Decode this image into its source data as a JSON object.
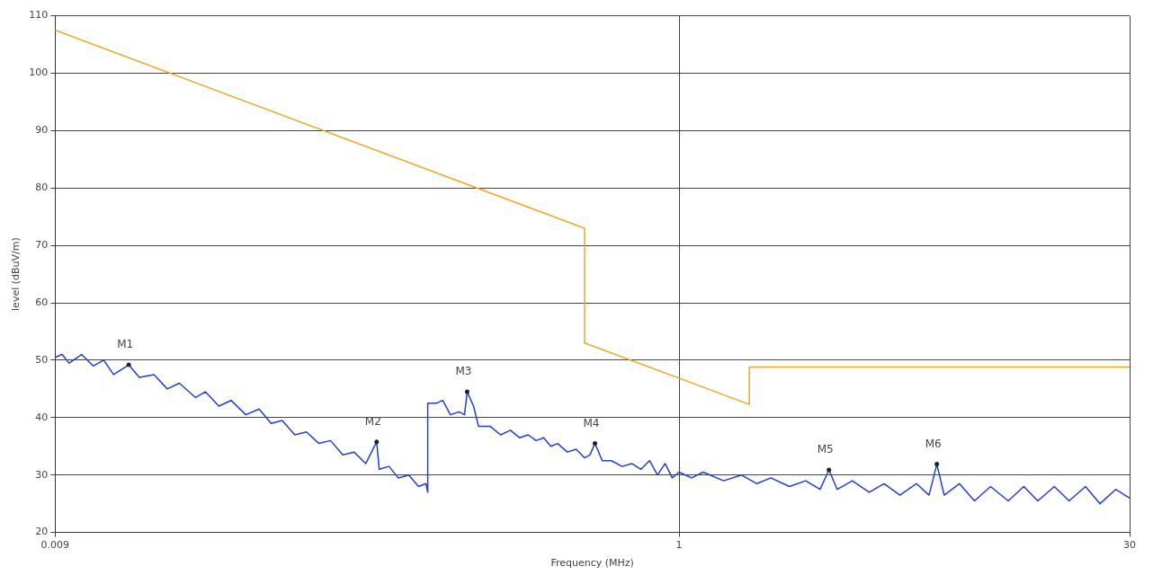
{
  "chart_data": {
    "type": "line",
    "xlabel": "Frequency (MHz)",
    "ylabel": "level (dBuV/m)",
    "log": "x",
    "grid": true,
    "legend": false,
    "marker": "none",
    "line_style": "solid",
    "xlim": [
      0.009,
      30
    ],
    "xticks": [
      0.009,
      1,
      30
    ],
    "ylim": [
      20,
      110
    ],
    "yticks": [
      20,
      30,
      40,
      50,
      60,
      70,
      80,
      90,
      100,
      110
    ],
    "series": [
      {
        "color": "#f5a623",
        "x": [
          0.009,
          0.49,
          0.49,
          1.7,
          1.7,
          30
        ],
        "values": [
          107.5,
          73,
          53,
          42.3,
          48.8,
          48.8
        ]
      },
      {
        "color": "#1f3fd6",
        "x": [
          0.009,
          0.0095,
          0.01,
          0.011,
          0.012,
          0.013,
          0.014,
          0.0157,
          0.017,
          0.019,
          0.021,
          0.023,
          0.026,
          0.028,
          0.031,
          0.034,
          0.038,
          0.042,
          0.046,
          0.05,
          0.055,
          0.06,
          0.066,
          0.072,
          0.079,
          0.086,
          0.094,
          0.102,
          0.104,
          0.112,
          0.12,
          0.13,
          0.14,
          0.148,
          0.15,
          0.15,
          0.16,
          0.168,
          0.178,
          0.19,
          0.198,
          0.202,
          0.212,
          0.22,
          0.24,
          0.26,
          0.28,
          0.3,
          0.32,
          0.34,
          0.36,
          0.38,
          0.4,
          0.43,
          0.46,
          0.49,
          0.51,
          0.53,
          0.56,
          0.6,
          0.65,
          0.7,
          0.75,
          0.8,
          0.85,
          0.9,
          0.95,
          1,
          1.1,
          1.2,
          1.4,
          1.6,
          1.8,
          2,
          2.3,
          2.6,
          2.9,
          3.1,
          3.3,
          3.7,
          4.2,
          4.7,
          5.3,
          6,
          6.6,
          7,
          7.4,
          8.3,
          9.3,
          10.5,
          12,
          13.5,
          15,
          17,
          19,
          21.5,
          24,
          27,
          30
        ],
        "values": [
          50.5,
          51,
          49.5,
          51,
          49,
          50,
          47.5,
          49.2,
          47,
          47.5,
          45,
          46,
          43.5,
          44.5,
          42,
          43,
          40.5,
          41.5,
          39,
          39.5,
          37,
          37.5,
          35.5,
          36,
          33.5,
          34,
          32,
          35.8,
          31,
          31.5,
          29.5,
          30,
          28,
          28.5,
          27,
          42.5,
          42.5,
          43,
          40.5,
          41,
          40.5,
          44.5,
          42,
          38.5,
          38.5,
          37,
          37.8,
          36.5,
          37,
          36,
          36.5,
          35,
          35.5,
          34,
          34.5,
          33,
          33.5,
          35.5,
          32.5,
          32.5,
          31.5,
          32,
          31,
          32.5,
          30,
          32,
          29.5,
          30.5,
          29.5,
          30.5,
          29,
          30,
          28.5,
          29.5,
          28,
          29,
          27.5,
          30.9,
          27.5,
          29,
          27,
          28.5,
          26.5,
          28.5,
          26.5,
          31.9,
          26.5,
          28.5,
          25.5,
          28,
          25.5,
          28,
          25.5,
          28,
          25.5,
          28,
          25,
          27.5,
          26
        ]
      }
    ],
    "annotations": [
      {
        "text": "M1",
        "x": 0.0157,
        "y": 49.2
      },
      {
        "text": "M2",
        "x": 0.102,
        "y": 35.8
      },
      {
        "text": "M3",
        "x": 0.202,
        "y": 44.5
      },
      {
        "text": "M4",
        "x": 0.53,
        "y": 35.5
      },
      {
        "text": "M5",
        "x": 3.1,
        "y": 30.9
      },
      {
        "text": "M6",
        "x": 7,
        "y": 31.9
      }
    ]
  }
}
